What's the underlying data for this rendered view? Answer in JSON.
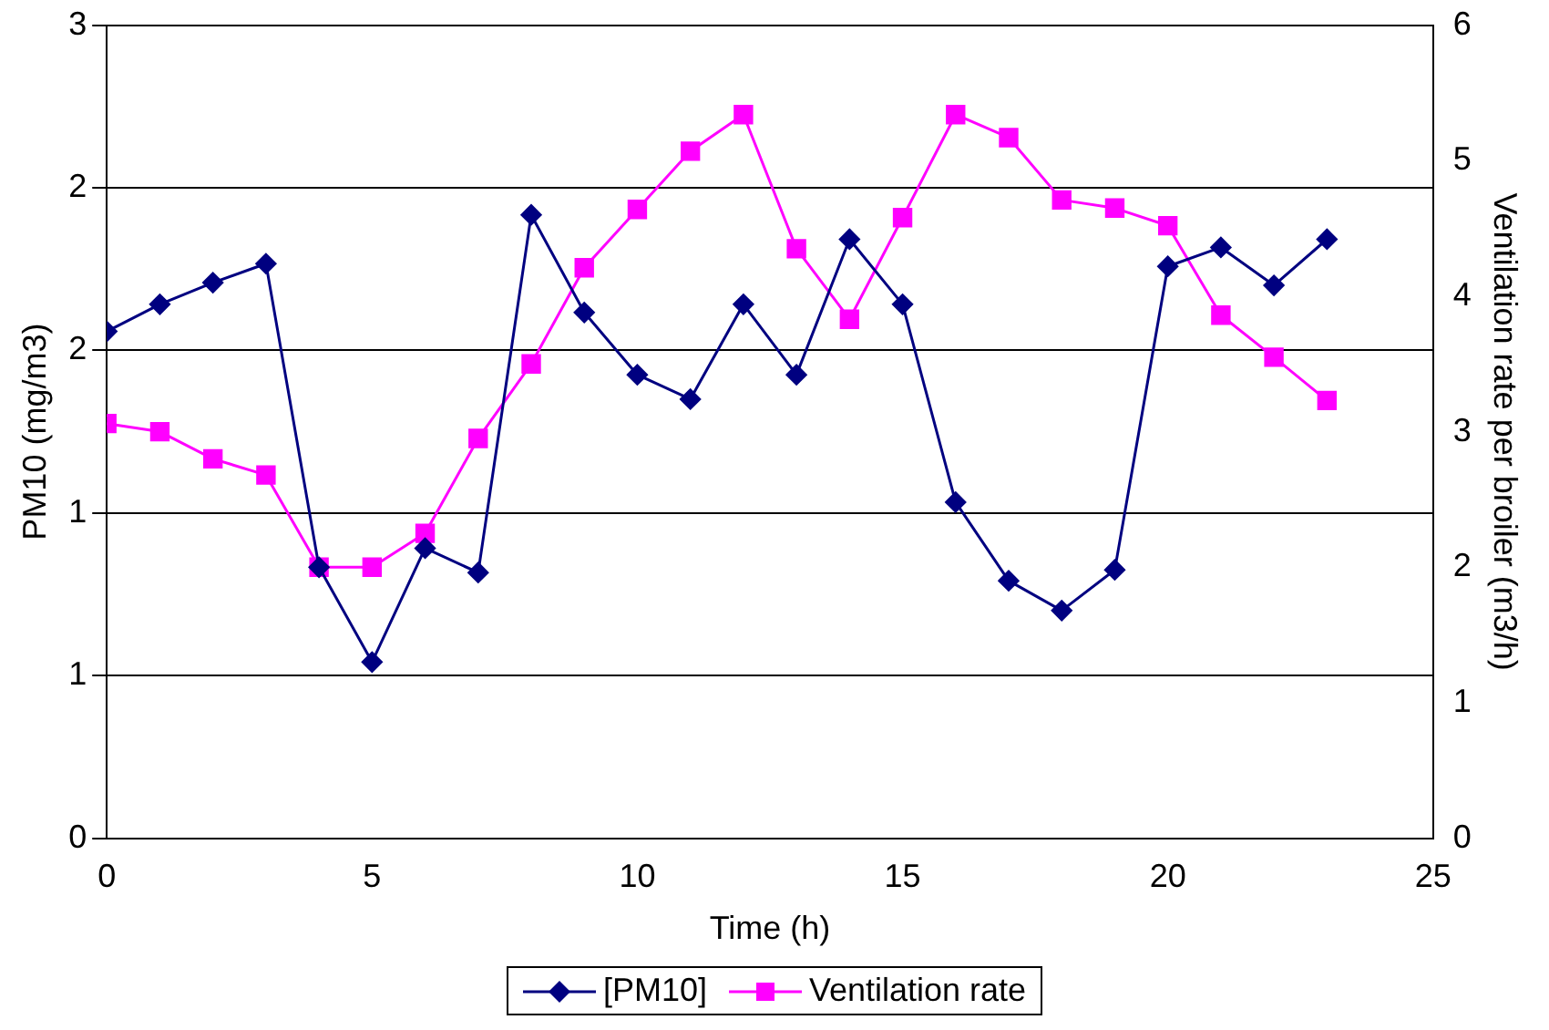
{
  "chart_data": {
    "type": "line",
    "xlabel": "Time (h)",
    "ylabel": "PM10 (mg/m3)",
    "y2label": "Ventilation rate per broiler (m3/h)",
    "x": [
      0,
      1,
      2,
      3,
      4,
      5,
      6,
      7,
      8,
      9,
      10,
      11,
      12,
      13,
      14,
      15,
      16,
      17,
      18,
      19,
      20,
      21,
      22,
      23
    ],
    "xlim": [
      0,
      25
    ],
    "xticks": [
      0,
      5,
      10,
      15,
      20,
      25
    ],
    "ylim": [
      0,
      3
    ],
    "yticks": [
      0,
      {
        "value": 0.6,
        "label": "1"
      },
      {
        "value": 1.2,
        "label": "1"
      },
      {
        "value": 1.8,
        "label": "2"
      },
      {
        "value": 2.4,
        "label": "2"
      },
      3
    ],
    "y2lim": [
      0,
      6
    ],
    "y2ticks": [
      0,
      1,
      2,
      3,
      4,
      5,
      6
    ],
    "grid": "y",
    "legend": "bottom",
    "line_style": "solid",
    "series": [
      {
        "name": "[PM10]",
        "color": "#000080",
        "marker": "diamond",
        "values": [
          1.87,
          1.97,
          2.05,
          2.12,
          1.0,
          0.65,
          1.07,
          0.98,
          2.3,
          1.94,
          1.71,
          1.62,
          1.97,
          1.71,
          2.21,
          1.97,
          1.24,
          0.95,
          0.84,
          0.99,
          2.11,
          2.18,
          2.04,
          2.21
        ]
      },
      {
        "name": "Ventilation rate",
        "color": "#ff00ff",
        "marker": "square",
        "axis": "y2",
        "values": [
          3.06,
          3.0,
          2.8,
          2.68,
          2.0,
          2.0,
          2.25,
          2.95,
          3.5,
          4.21,
          4.64,
          5.07,
          5.34,
          4.35,
          3.83,
          4.58,
          5.34,
          5.17,
          4.71,
          4.65,
          4.52,
          3.86,
          3.55,
          3.23
        ]
      }
    ]
  }
}
